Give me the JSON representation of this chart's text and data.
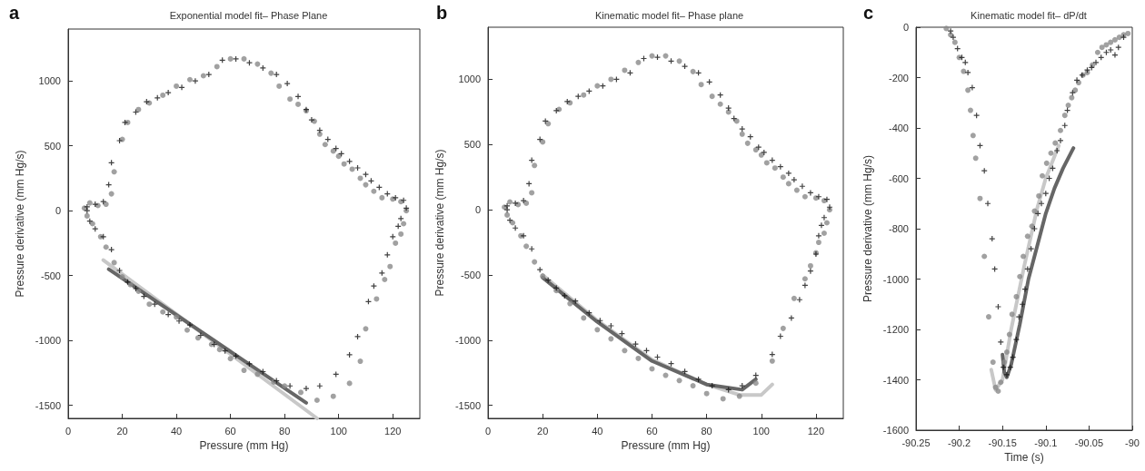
{
  "chart_data": [
    {
      "type": "scatter",
      "title": "Exponential model fit– Phase Plane",
      "xlabel": "Pressure (mm Hg)",
      "ylabel": "Pressure derivative (mm Hg/s)",
      "annotations": [
        "a"
      ],
      "xlim": [
        0,
        130
      ],
      "ylim": [
        -1600,
        1400
      ],
      "xticks": [
        0,
        20,
        40,
        60,
        80,
        100,
        120
      ],
      "yticks": [
        -1500,
        -1000,
        -500,
        0,
        500,
        1000
      ],
      "series": [
        {
          "color": "#8a8a8a",
          "marker": "circle",
          "x": [
            8,
            11,
            14,
            16,
            17,
            20,
            22,
            26,
            30,
            35,
            40,
            45,
            50,
            55,
            60,
            65,
            70,
            75,
            78,
            82,
            85,
            88,
            91,
            93,
            95,
            98,
            100,
            102,
            105,
            108,
            110,
            113,
            116,
            120,
            123,
            125,
            124,
            123,
            121,
            119,
            117,
            114,
            110,
            108,
            104,
            98,
            92,
            86,
            80,
            76,
            70,
            65,
            60,
            56,
            53,
            48,
            44,
            40,
            35,
            30,
            26,
            23,
            20,
            17,
            14,
            12,
            9,
            7,
            6
          ],
          "values": [
            60,
            40,
            50,
            130,
            300,
            550,
            680,
            780,
            830,
            890,
            960,
            1010,
            1040,
            1110,
            1170,
            1170,
            1130,
            1060,
            960,
            860,
            820,
            770,
            690,
            590,
            510,
            460,
            420,
            360,
            320,
            250,
            200,
            150,
            100,
            90,
            70,
            0,
            -100,
            -180,
            -250,
            -430,
            -530,
            -680,
            -910,
            -1160,
            -1330,
            -1430,
            -1460,
            -1400,
            -1350,
            -1320,
            -1260,
            -1230,
            -1140,
            -1070,
            -1030,
            -980,
            -920,
            -820,
            -780,
            -720,
            -620,
            -570,
            -510,
            -400,
            -280,
            -200,
            -100,
            -40,
            20
          ]
        },
        {
          "color": "#111111",
          "marker": "cross",
          "x": [
            7,
            10,
            13,
            15,
            16,
            19,
            21,
            25,
            29,
            33,
            37,
            42,
            47,
            52,
            57,
            62,
            67,
            72,
            77,
            81,
            85,
            88,
            90,
            93,
            96,
            99,
            101,
            104,
            107,
            110,
            112,
            115,
            118,
            121,
            124,
            125,
            123,
            122,
            120,
            118,
            116,
            113,
            111,
            107,
            104,
            99,
            93,
            88,
            82,
            77,
            72,
            67,
            62,
            58,
            54,
            49,
            45,
            41,
            37,
            32,
            28,
            25,
            22,
            19,
            16,
            13,
            10,
            8,
            7
          ],
          "values": [
            30,
            50,
            70,
            200,
            370,
            540,
            680,
            760,
            840,
            870,
            910,
            950,
            1000,
            1050,
            1160,
            1170,
            1140,
            1100,
            1050,
            980,
            880,
            780,
            700,
            620,
            550,
            480,
            440,
            380,
            330,
            280,
            230,
            180,
            130,
            100,
            80,
            20,
            -60,
            -120,
            -200,
            -340,
            -480,
            -580,
            -700,
            -970,
            -1110,
            -1260,
            -1350,
            -1370,
            -1350,
            -1310,
            -1240,
            -1180,
            -1120,
            -1080,
            -1030,
            -960,
            -880,
            -850,
            -800,
            -720,
            -660,
            -600,
            -550,
            -460,
            -300,
            -200,
            -140,
            -80,
            0
          ]
        },
        {
          "type": "line",
          "color": "#c8c8c8",
          "marker": "none",
          "x": [
            13,
            92
          ],
          "values": [
            -380,
            -1600
          ]
        },
        {
          "type": "line",
          "color": "#666666",
          "marker": "none",
          "x": [
            15,
            88
          ],
          "values": [
            -450,
            -1480
          ]
        }
      ]
    },
    {
      "type": "scatter",
      "title": "Kinematic model fit– Phase plane",
      "xlabel": "Pressure (mm Hg)",
      "ylabel": "Pressure derivative (mm Hg/s)",
      "annotations": [
        "b"
      ],
      "xlim": [
        0,
        130
      ],
      "ylim": [
        -1600,
        1400
      ],
      "xticks": [
        0,
        20,
        40,
        60,
        80,
        100,
        120
      ],
      "yticks": [
        -1500,
        -1000,
        -500,
        0,
        500,
        1000
      ],
      "series": [
        {
          "color": "#8a8a8a",
          "marker": "circle",
          "x": [
            8,
            11,
            14,
            16,
            17,
            20,
            22,
            26,
            30,
            35,
            40,
            45,
            50,
            55,
            60,
            65,
            70,
            75,
            78,
            82,
            85,
            88,
            91,
            93,
            95,
            98,
            100,
            102,
            105,
            108,
            110,
            113,
            116,
            120,
            123,
            125,
            124,
            123,
            121,
            120,
            118,
            116,
            112,
            108,
            104,
            98,
            92,
            86,
            80,
            75,
            70,
            65,
            60,
            55,
            50,
            45,
            40,
            35,
            30,
            25,
            20,
            17,
            14,
            12,
            9,
            7,
            6
          ],
          "values": [
            60,
            40,
            50,
            130,
            340,
            520,
            660,
            770,
            820,
            880,
            950,
            1000,
            1070,
            1130,
            1180,
            1180,
            1140,
            1060,
            960,
            870,
            810,
            750,
            680,
            580,
            510,
            460,
            420,
            360,
            320,
            250,
            200,
            150,
            100,
            90,
            70,
            0,
            -100,
            -180,
            -250,
            -330,
            -430,
            -530,
            -680,
            -910,
            -1160,
            -1330,
            -1430,
            -1450,
            -1410,
            -1350,
            -1310,
            -1270,
            -1220,
            -1140,
            -1080,
            -990,
            -920,
            -830,
            -720,
            -620,
            -510,
            -400,
            -280,
            -200,
            -100,
            -40,
            20
          ]
        },
        {
          "color": "#111111",
          "marker": "cross",
          "x": [
            7,
            10,
            13,
            15,
            16,
            19,
            21,
            25,
            29,
            33,
            37,
            42,
            47,
            52,
            57,
            62,
            67,
            72,
            77,
            81,
            85,
            88,
            90,
            93,
            96,
            99,
            101,
            104,
            107,
            110,
            112,
            115,
            118,
            121,
            124,
            125,
            123,
            122,
            121,
            120,
            118,
            116,
            114,
            111,
            107,
            104,
            98,
            93,
            88,
            82,
            77,
            72,
            67,
            62,
            58,
            54,
            49,
            45,
            41,
            37,
            32,
            28,
            25,
            22,
            19,
            16,
            13,
            10,
            8,
            7
          ],
          "values": [
            30,
            50,
            70,
            200,
            380,
            540,
            680,
            760,
            830,
            870,
            910,
            950,
            1000,
            1050,
            1160,
            1170,
            1140,
            1100,
            1050,
            980,
            880,
            780,
            700,
            620,
            560,
            480,
            440,
            380,
            330,
            280,
            230,
            180,
            130,
            100,
            80,
            20,
            -60,
            -120,
            -200,
            -340,
            -470,
            -580,
            -690,
            -830,
            -970,
            -1110,
            -1270,
            -1350,
            -1380,
            -1350,
            -1300,
            -1240,
            -1180,
            -1130,
            -1080,
            -1030,
            -950,
            -890,
            -850,
            -790,
            -700,
            -660,
            -600,
            -540,
            -460,
            -300,
            -200,
            -140,
            -80,
            0
          ]
        },
        {
          "type": "line",
          "color": "#c8c8c8",
          "marker": "none",
          "x": [
            20,
            40,
            60,
            80,
            92,
            100,
            104
          ],
          "values": [
            -500,
            -850,
            -1150,
            -1340,
            -1420,
            -1420,
            -1340
          ]
        },
        {
          "type": "line",
          "color": "#666666",
          "marker": "none",
          "x": [
            20,
            40,
            60,
            80,
            93,
            98
          ],
          "values": [
            -520,
            -860,
            -1160,
            -1340,
            -1380,
            -1300
          ]
        }
      ]
    },
    {
      "type": "scatter",
      "title": "Kinematic model fit– dP/dt",
      "xlabel": "Time (s)",
      "ylabel": "Pressure derivative (mm Hg/s)",
      "annotations": [
        "c"
      ],
      "xlim": [
        -90.25,
        -90
      ],
      "ylim": [
        -1600,
        0
      ],
      "xticks": [
        -90.25,
        -90.2,
        -90.15,
        -90.1,
        -90.05,
        -90
      ],
      "yticks": [
        -1600,
        -1400,
        -1200,
        -1000,
        -800,
        -600,
        -400,
        -200,
        0
      ],
      "series": [
        {
          "color": "#8a8a8a",
          "marker": "circle",
          "x": [
            -90.215,
            -90.21,
            -90.205,
            -90.2,
            -90.195,
            -90.19,
            -90.187,
            -90.184,
            -90.181,
            -90.176,
            -90.171,
            -90.166,
            -90.161,
            -90.158,
            -90.155,
            -90.152,
            -90.148,
            -90.145,
            -90.142,
            -90.139,
            -90.134,
            -90.13,
            -90.126,
            -90.121,
            -90.116,
            -90.113,
            -90.108,
            -90.104,
            -90.099,
            -90.094,
            -90.089,
            -90.083,
            -90.078,
            -90.074,
            -90.07,
            -90.066,
            -90.062,
            -90.057,
            -90.052,
            -90.046,
            -90.04,
            -90.035,
            -90.03,
            -90.025,
            -90.02,
            -90.015,
            -90.01,
            -90.005
          ],
          "values": [
            -5,
            -30,
            -60,
            -120,
            -175,
            -250,
            -330,
            -430,
            -520,
            -680,
            -910,
            -1150,
            -1330,
            -1430,
            -1445,
            -1410,
            -1330,
            -1290,
            -1220,
            -1140,
            -1070,
            -990,
            -910,
            -830,
            -790,
            -730,
            -670,
            -590,
            -540,
            -500,
            -460,
            -410,
            -350,
            -310,
            -280,
            -250,
            -220,
            -190,
            -180,
            -150,
            -100,
            -80,
            -70,
            -60,
            -50,
            -40,
            -30,
            -25
          ]
        },
        {
          "color": "#111111",
          "marker": "cross",
          "x": [
            -90.21,
            -90.207,
            -90.202,
            -90.197,
            -90.193,
            -90.19,
            -90.185,
            -90.18,
            -90.176,
            -90.171,
            -90.167,
            -90.162,
            -90.159,
            -90.155,
            -90.152,
            -90.149,
            -90.145,
            -90.141,
            -90.138,
            -90.134,
            -90.131,
            -90.127,
            -90.124,
            -90.121,
            -90.117,
            -90.113,
            -90.109,
            -90.105,
            -90.1,
            -90.096,
            -90.092,
            -90.087,
            -90.083,
            -90.078,
            -90.075,
            -90.069,
            -90.064,
            -90.058,
            -90.052,
            -90.047,
            -90.042,
            -90.036,
            -90.03,
            -90.025,
            -90.02,
            -90.016,
            -90.01
          ],
          "values": [
            -15,
            -40,
            -85,
            -120,
            -140,
            -180,
            -240,
            -350,
            -470,
            -570,
            -700,
            -840,
            -960,
            -1110,
            -1250,
            -1350,
            -1380,
            -1350,
            -1310,
            -1240,
            -1150,
            -1100,
            -1040,
            -960,
            -880,
            -800,
            -740,
            -700,
            -660,
            -600,
            -560,
            -490,
            -450,
            -390,
            -330,
            -260,
            -210,
            -190,
            -170,
            -160,
            -140,
            -120,
            -100,
            -90,
            -110,
            -80,
            -40
          ]
        },
        {
          "type": "line",
          "color": "#c8c8c8",
          "marker": "none",
          "x": [
            -90.163,
            -90.158,
            -90.15,
            -90.14,
            -90.125,
            -90.11,
            -90.1,
            -90.085
          ],
          "values": [
            -1360,
            -1440,
            -1400,
            -1200,
            -950,
            -720,
            -600,
            -470
          ]
        },
        {
          "type": "line",
          "color": "#666666",
          "marker": "none",
          "x": [
            -90.15,
            -90.148,
            -90.145,
            -90.14,
            -90.13,
            -90.12,
            -90.11,
            -90.1,
            -90.09,
            -90.08,
            -90.068
          ],
          "values": [
            -1300,
            -1370,
            -1390,
            -1340,
            -1180,
            -1000,
            -870,
            -740,
            -640,
            -560,
            -480
          ]
        }
      ]
    }
  ]
}
